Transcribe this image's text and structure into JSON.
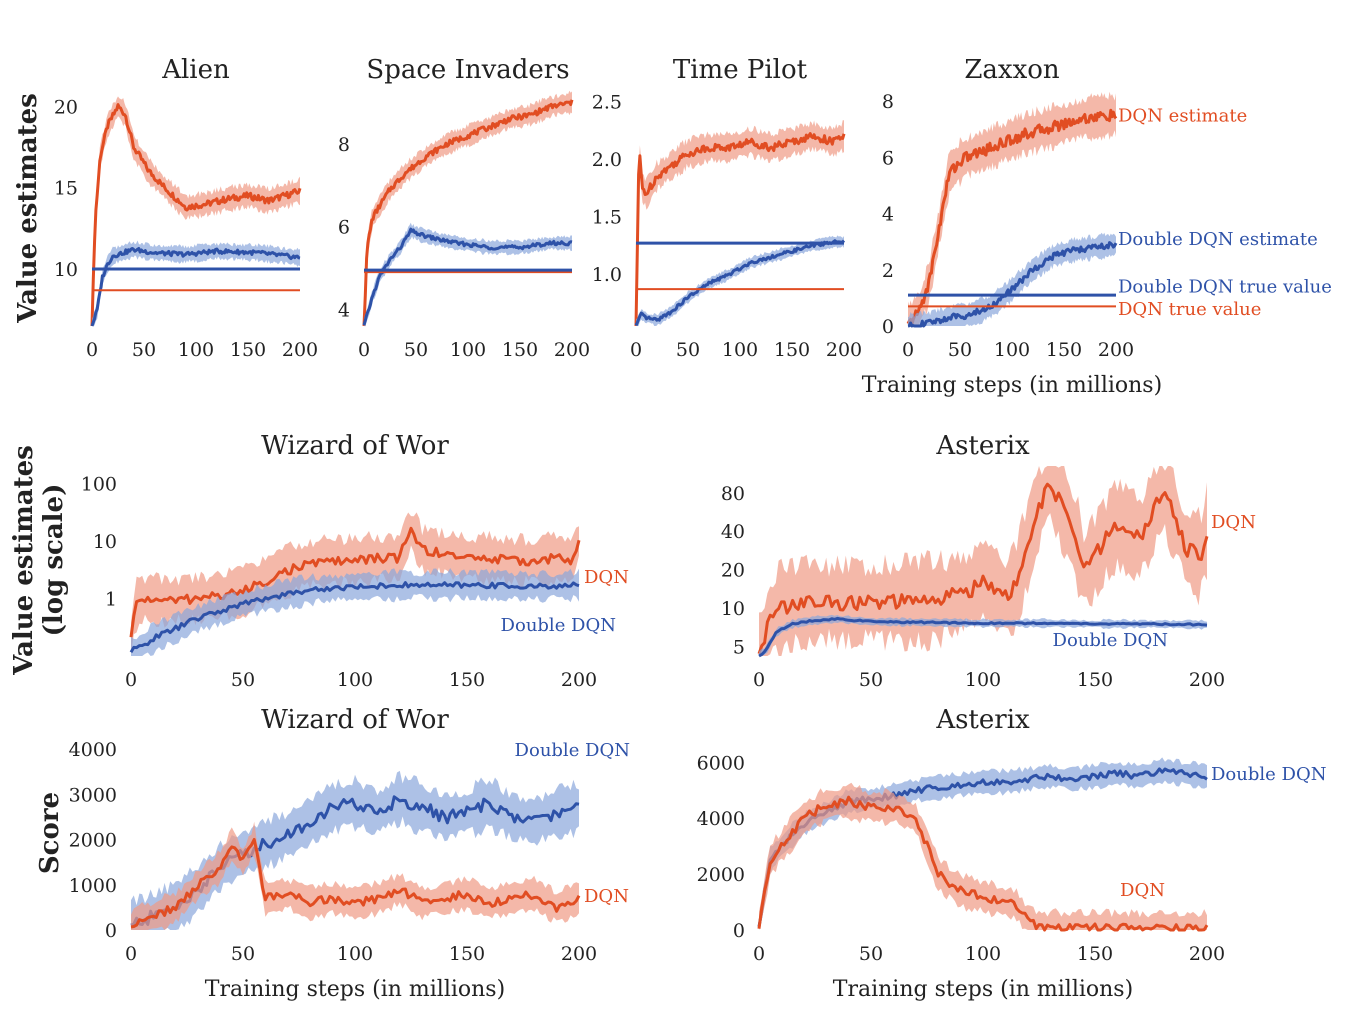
{
  "figure": {
    "ylabel_top": "Value estimates",
    "ylabel_mid_line1": "Value estimates",
    "ylabel_mid_line2": "(log scale)",
    "ylabel_bottom": "Score",
    "xlabel": "Training steps (in millions)"
  },
  "colors": {
    "dqn": "#e14d22",
    "dqn_band": "#f09a84",
    "ddqn": "#2e52a8",
    "ddqn_band": "#8aa6dc"
  },
  "chart_data": [
    {
      "id": "alien",
      "type": "line",
      "title": "Alien",
      "x_ticks": [
        "0",
        "50",
        "100",
        "150",
        "200"
      ],
      "y_ticks": [
        "10",
        "15",
        "20"
      ],
      "xlim": [
        0,
        200
      ],
      "ylim": [
        6.5,
        21
      ],
      "series": [
        {
          "kind": "dqn",
          "x": [
            0,
            3,
            8,
            15,
            25,
            32,
            40,
            55,
            70,
            90,
            110,
            130,
            150,
            170,
            200
          ],
          "y": [
            6.5,
            13,
            17,
            18.8,
            20,
            19.5,
            17.5,
            16,
            15,
            13.8,
            14,
            14.3,
            14.5,
            14.2,
            14.8
          ]
        },
        {
          "kind": "ddqn",
          "x": [
            0,
            5,
            10,
            15,
            20,
            30,
            40,
            60,
            90,
            120,
            160,
            200
          ],
          "y": [
            6.5,
            7.5,
            9.5,
            10.3,
            10.8,
            11,
            11.2,
            11,
            10.9,
            11.1,
            11,
            10.7
          ]
        },
        {
          "kind": "dqn_true",
          "value": 8.7
        },
        {
          "kind": "ddqn_true",
          "value": 10
        }
      ],
      "band": {
        "dqn": 0.9,
        "ddqn": 0.6
      }
    },
    {
      "id": "space_invaders",
      "type": "line",
      "title": "Space Invaders",
      "x_ticks": [
        "0",
        "50",
        "100",
        "150",
        "200"
      ],
      "y_ticks": [
        "4",
        "6",
        "8"
      ],
      "xlim": [
        0,
        200
      ],
      "ylim": [
        3.6,
        9.3
      ],
      "series": [
        {
          "kind": "dqn",
          "x": [
            0,
            3,
            8,
            15,
            25,
            40,
            60,
            80,
            100,
            120,
            140,
            160,
            180,
            200
          ],
          "y": [
            3.6,
            5.5,
            6.2,
            6.5,
            6.9,
            7.3,
            7.7,
            8,
            8.2,
            8.4,
            8.6,
            8.7,
            8.9,
            9.0
          ]
        },
        {
          "kind": "ddqn",
          "x": [
            0,
            8,
            15,
            25,
            35,
            45,
            55,
            70,
            90,
            120,
            150,
            180,
            200
          ],
          "y": [
            3.6,
            4.3,
            4.8,
            5.2,
            5.5,
            5.9,
            5.8,
            5.7,
            5.6,
            5.5,
            5.5,
            5.6,
            5.6
          ]
        },
        {
          "kind": "dqn_true",
          "value": 4.9
        },
        {
          "kind": "ddqn_true",
          "value": 4.95
        }
      ],
      "band": {
        "dqn": 0.3,
        "ddqn": 0.2
      }
    },
    {
      "id": "time_pilot",
      "type": "line",
      "title": "Time Pilot",
      "x_ticks": [
        "0",
        "50",
        "100",
        "150",
        "200"
      ],
      "y_ticks": [
        "1.0",
        "1.5",
        "2.0",
        "2.5"
      ],
      "xlim": [
        0,
        200
      ],
      "ylim": [
        0.55,
        2.6
      ],
      "series": [
        {
          "kind": "dqn",
          "x": [
            0,
            3,
            6,
            10,
            20,
            35,
            50,
            70,
            90,
            110,
            130,
            150,
            170,
            190,
            200
          ],
          "y": [
            0.55,
            2.1,
            1.75,
            1.7,
            1.85,
            1.95,
            2.05,
            2.1,
            2.1,
            2.15,
            2.1,
            2.15,
            2.2,
            2.15,
            2.2
          ]
        },
        {
          "kind": "ddqn",
          "x": [
            0,
            5,
            10,
            20,
            35,
            50,
            70,
            90,
            110,
            130,
            150,
            170,
            190,
            200
          ],
          "y": [
            0.55,
            0.65,
            0.62,
            0.6,
            0.68,
            0.8,
            0.92,
            1.0,
            1.1,
            1.15,
            1.2,
            1.25,
            1.28,
            1.28
          ]
        },
        {
          "kind": "dqn_true",
          "value": 0.87
        },
        {
          "kind": "ddqn_true",
          "value": 1.27
        }
      ],
      "band": {
        "dqn": 0.15,
        "ddqn": 0.06
      }
    },
    {
      "id": "zaxxon",
      "type": "line",
      "title": "Zaxxon",
      "x_ticks": [
        "0",
        "50",
        "100",
        "150",
        "200"
      ],
      "y_ticks": [
        "0",
        "2",
        "4",
        "6",
        "8"
      ],
      "xlim": [
        0,
        200
      ],
      "ylim": [
        0,
        8.4
      ],
      "xlabel": "Training steps (in millions)",
      "series": [
        {
          "kind": "dqn",
          "x": [
            0,
            10,
            20,
            30,
            40,
            55,
            70,
            90,
            110,
            130,
            150,
            170,
            200
          ],
          "y": [
            0,
            0.5,
            1.5,
            3.5,
            5.5,
            6,
            6.2,
            6.5,
            6.8,
            7,
            7.2,
            7.4,
            7.5
          ]
        },
        {
          "kind": "ddqn",
          "x": [
            0,
            20,
            40,
            60,
            80,
            100,
            120,
            140,
            160,
            180,
            200
          ],
          "y": [
            0,
            0.1,
            0.3,
            0.4,
            0.7,
            1.3,
            2.0,
            2.5,
            2.7,
            2.8,
            2.9
          ]
        },
        {
          "kind": "dqn_true",
          "value": 0.7
        },
        {
          "kind": "ddqn_true",
          "value": 1.1
        }
      ],
      "band": {
        "dqn": 0.9,
        "ddqn": 0.5
      },
      "labels": [
        "DQN estimate",
        "Double DQN estimate",
        "Double DQN true value",
        "DQN true value"
      ]
    },
    {
      "id": "wizard_value",
      "type": "line",
      "title": "Wizard of Wor",
      "x_ticks": [
        "0",
        "50",
        "100",
        "150",
        "200"
      ],
      "y_ticks": [
        "1",
        "10",
        "100"
      ],
      "xlim": [
        0,
        200
      ],
      "ylim": [
        0.1,
        200
      ],
      "yscale": "log",
      "series": [
        {
          "kind": "dqn",
          "name": "DQN",
          "x": [
            0,
            3,
            8,
            15,
            30,
            50,
            60,
            70,
            80,
            90,
            100,
            110,
            120,
            125,
            130,
            140,
            150,
            160,
            170,
            180,
            190,
            197,
            200
          ],
          "y": [
            0.2,
            0.9,
            1,
            0.9,
            1,
            1.3,
            2,
            3,
            4,
            4.5,
            4.5,
            5,
            5,
            15,
            7,
            6,
            5,
            5,
            4.5,
            4.5,
            5,
            4.5,
            10
          ]
        },
        {
          "kind": "ddqn",
          "name": "Double DQN",
          "x": [
            0,
            5,
            10,
            20,
            30,
            40,
            50,
            60,
            70,
            80,
            100,
            120,
            140,
            160,
            180,
            200
          ],
          "y": [
            0.12,
            0.15,
            0.2,
            0.3,
            0.45,
            0.6,
            0.8,
            1,
            1.2,
            1.4,
            1.6,
            1.7,
            1.7,
            1.7,
            1.6,
            1.7
          ]
        }
      ],
      "band": {
        "dqn": 0.5,
        "ddqn": 0.3
      }
    },
    {
      "id": "asterix_value",
      "type": "line",
      "title": "Asterix",
      "x_ticks": [
        "0",
        "50",
        "100",
        "150",
        "200"
      ],
      "y_ticks": [
        "5",
        "10",
        "20",
        "40",
        "80"
      ],
      "xlim": [
        0,
        200
      ],
      "ylim": [
        4.2,
        130
      ],
      "yscale": "log",
      "series": [
        {
          "kind": "dqn",
          "name": "DQN",
          "x": [
            0,
            5,
            10,
            20,
            40,
            60,
            80,
            95,
            100,
            110,
            115,
            120,
            130,
            140,
            145,
            150,
            160,
            170,
            175,
            180,
            190,
            197,
            200
          ],
          "y": [
            4.2,
            8,
            10,
            11,
            11,
            11,
            11.5,
            14,
            17,
            12,
            15,
            30,
            90,
            40,
            20,
            25,
            45,
            35,
            50,
            80,
            30,
            25,
            40
          ]
        },
        {
          "kind": "ddqn",
          "name": "Double DQN",
          "x": [
            0,
            3,
            8,
            15,
            25,
            35,
            50,
            75,
            100,
            125,
            150,
            175,
            200
          ],
          "y": [
            4.2,
            4.6,
            6.5,
            7.5,
            8,
            8.2,
            7.8,
            7.7,
            7.6,
            7.6,
            7.5,
            7.5,
            7.4
          ]
        }
      ],
      "band": {
        "dqn": 0.4,
        "ddqn": 0.04
      }
    },
    {
      "id": "wizard_score",
      "type": "line",
      "title": "Wizard of Wor",
      "x_ticks": [
        "0",
        "50",
        "100",
        "150",
        "200"
      ],
      "y_ticks": [
        "0",
        "1000",
        "2000",
        "3000",
        "4000"
      ],
      "xlim": [
        0,
        200
      ],
      "ylim": [
        0,
        4200
      ],
      "xlabel": "Training steps (in millions)",
      "series": [
        {
          "kind": "ddqn",
          "name": "Double DQN",
          "x": [
            0,
            10,
            20,
            30,
            40,
            50,
            60,
            70,
            80,
            90,
            100,
            110,
            120,
            130,
            140,
            150,
            160,
            170,
            180,
            190,
            200
          ],
          "y": [
            100,
            300,
            500,
            900,
            1400,
            1700,
            1900,
            2100,
            2400,
            2700,
            2800,
            2600,
            2900,
            2700,
            2500,
            2600,
            2800,
            2500,
            2400,
            2600,
            2700
          ]
        },
        {
          "kind": "dqn",
          "name": "DQN",
          "x": [
            0,
            10,
            20,
            30,
            40,
            45,
            50,
            55,
            60,
            70,
            80,
            90,
            100,
            110,
            120,
            130,
            140,
            150,
            160,
            170,
            180,
            190,
            200
          ],
          "y": [
            100,
            300,
            500,
            1000,
            1400,
            1900,
            1500,
            2000,
            700,
            800,
            600,
            700,
            600,
            700,
            900,
            600,
            700,
            800,
            600,
            700,
            800,
            500,
            700
          ]
        }
      ],
      "band": {
        "dqn": 420,
        "ddqn": 650
      }
    },
    {
      "id": "asterix_score",
      "type": "line",
      "title": "Asterix",
      "x_ticks": [
        "0",
        "50",
        "100",
        "150",
        "200"
      ],
      "y_ticks": [
        "0",
        "2000",
        "4000",
        "6000"
      ],
      "xlim": [
        0,
        200
      ],
      "ylim": [
        0,
        6800
      ],
      "xlabel": "Training steps (in millions)",
      "series": [
        {
          "kind": "ddqn",
          "name": "Double DQN",
          "x": [
            0,
            5,
            10,
            20,
            30,
            40,
            50,
            60,
            70,
            80,
            90,
            100,
            110,
            120,
            130,
            140,
            150,
            160,
            170,
            180,
            190,
            200
          ],
          "y": [
            200,
            2500,
            3000,
            3800,
            4200,
            4600,
            4700,
            4800,
            5000,
            5100,
            5200,
            5300,
            5300,
            5400,
            5500,
            5400,
            5500,
            5600,
            5500,
            5700,
            5600,
            5500
          ]
        },
        {
          "kind": "dqn",
          "name": "DQN",
          "x": [
            0,
            5,
            10,
            20,
            30,
            40,
            50,
            60,
            70,
            75,
            80,
            90,
            100,
            110,
            115,
            120,
            125,
            140,
            160,
            180,
            200
          ],
          "y": [
            200,
            2500,
            3000,
            4000,
            4500,
            4600,
            4400,
            4400,
            4000,
            3000,
            2000,
            1400,
            1200,
            1000,
            900,
            300,
            100,
            80,
            60,
            50,
            50
          ]
        }
      ],
      "band": {
        "dqn": 700,
        "ddqn": 500
      }
    }
  ],
  "annotations": {
    "wizard_value": {
      "dqn": "DQN",
      "ddqn": "Double DQN"
    },
    "asterix_value": {
      "dqn": "DQN",
      "ddqn": "Double DQN"
    },
    "wizard_score": {
      "dqn": "DQN",
      "ddqn": "Double DQN"
    },
    "asterix_score": {
      "dqn": "DQN",
      "ddqn": "Double DQN"
    }
  }
}
